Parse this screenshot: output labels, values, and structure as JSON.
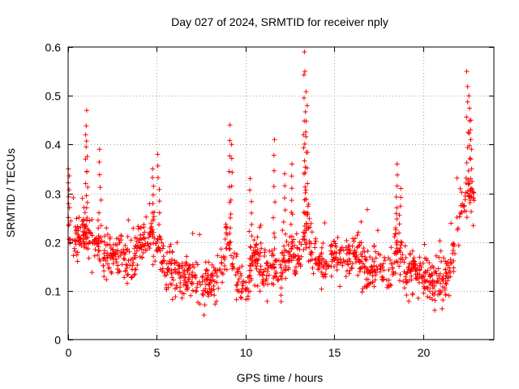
{
  "chart_data": {
    "type": "scatter",
    "title": "Day 027 of 2024, SRMTID for receiver nply",
    "xlabel": "GPS time / hours",
    "ylabel": "SRMTID / TECUs",
    "xlim": [
      0,
      24
    ],
    "ylim": [
      0,
      0.6
    ],
    "x_ticks": [
      0,
      5,
      10,
      15,
      20
    ],
    "x_tick_labels": [
      "0",
      "5",
      "10",
      "15",
      "20"
    ],
    "y_ticks": [
      0,
      0.1,
      0.2,
      0.3,
      0.4,
      0.5,
      0.6
    ],
    "y_tick_labels": [
      "0",
      "0.1",
      "0.2",
      "0.3",
      "0.4",
      "0.5",
      "0.6"
    ],
    "grid": true,
    "marker": "+",
    "color": "#ff0000",
    "x_extent": [
      0,
      22.9
    ],
    "baseline_envelope": [
      {
        "x": 0.0,
        "y": 0.24
      },
      {
        "x": 0.5,
        "y": 0.2
      },
      {
        "x": 1.0,
        "y": 0.22
      },
      {
        "x": 1.5,
        "y": 0.2
      },
      {
        "x": 2.0,
        "y": 0.17
      },
      {
        "x": 2.5,
        "y": 0.17
      },
      {
        "x": 3.0,
        "y": 0.18
      },
      {
        "x": 3.5,
        "y": 0.14
      },
      {
        "x": 4.0,
        "y": 0.2
      },
      {
        "x": 4.5,
        "y": 0.22
      },
      {
        "x": 5.0,
        "y": 0.2
      },
      {
        "x": 5.5,
        "y": 0.14
      },
      {
        "x": 6.0,
        "y": 0.15
      },
      {
        "x": 6.5,
        "y": 0.13
      },
      {
        "x": 7.0,
        "y": 0.14
      },
      {
        "x": 7.5,
        "y": 0.1
      },
      {
        "x": 8.0,
        "y": 0.12
      },
      {
        "x": 8.5,
        "y": 0.12
      },
      {
        "x": 9.0,
        "y": 0.2
      },
      {
        "x": 9.5,
        "y": 0.13
      },
      {
        "x": 10.0,
        "y": 0.1
      },
      {
        "x": 10.5,
        "y": 0.17
      },
      {
        "x": 11.0,
        "y": 0.14
      },
      {
        "x": 11.5,
        "y": 0.16
      },
      {
        "x": 12.0,
        "y": 0.13
      },
      {
        "x": 12.5,
        "y": 0.16
      },
      {
        "x": 13.0,
        "y": 0.17
      },
      {
        "x": 13.5,
        "y": 0.23
      },
      {
        "x": 14.0,
        "y": 0.16
      },
      {
        "x": 14.5,
        "y": 0.15
      },
      {
        "x": 15.0,
        "y": 0.18
      },
      {
        "x": 15.5,
        "y": 0.16
      },
      {
        "x": 16.0,
        "y": 0.17
      },
      {
        "x": 16.5,
        "y": 0.16
      },
      {
        "x": 17.0,
        "y": 0.14
      },
      {
        "x": 17.5,
        "y": 0.14
      },
      {
        "x": 18.0,
        "y": 0.12
      },
      {
        "x": 18.5,
        "y": 0.18
      },
      {
        "x": 19.0,
        "y": 0.14
      },
      {
        "x": 19.5,
        "y": 0.15
      },
      {
        "x": 20.0,
        "y": 0.13
      },
      {
        "x": 20.5,
        "y": 0.12
      },
      {
        "x": 21.0,
        "y": 0.12
      },
      {
        "x": 21.5,
        "y": 0.13
      },
      {
        "x": 22.0,
        "y": 0.24
      },
      {
        "x": 22.5,
        "y": 0.3
      },
      {
        "x": 22.9,
        "y": 0.28
      }
    ],
    "spikes": [
      {
        "x": 0.05,
        "y": 0.35
      },
      {
        "x": 1.05,
        "y": 0.47
      },
      {
        "x": 1.0,
        "y": 0.42
      },
      {
        "x": 1.8,
        "y": 0.39
      },
      {
        "x": 4.8,
        "y": 0.35
      },
      {
        "x": 5.1,
        "y": 0.38
      },
      {
        "x": 9.1,
        "y": 0.44
      },
      {
        "x": 9.2,
        "y": 0.4
      },
      {
        "x": 10.3,
        "y": 0.33
      },
      {
        "x": 11.6,
        "y": 0.41
      },
      {
        "x": 12.2,
        "y": 0.34
      },
      {
        "x": 12.6,
        "y": 0.36
      },
      {
        "x": 13.35,
        "y": 0.59
      },
      {
        "x": 13.4,
        "y": 0.55
      },
      {
        "x": 13.45,
        "y": 0.48
      },
      {
        "x": 13.3,
        "y": 0.42
      },
      {
        "x": 18.5,
        "y": 0.36
      },
      {
        "x": 18.7,
        "y": 0.31
      },
      {
        "x": 22.5,
        "y": 0.55
      },
      {
        "x": 22.6,
        "y": 0.5
      },
      {
        "x": 22.7,
        "y": 0.45
      }
    ],
    "point_count": 1300
  }
}
